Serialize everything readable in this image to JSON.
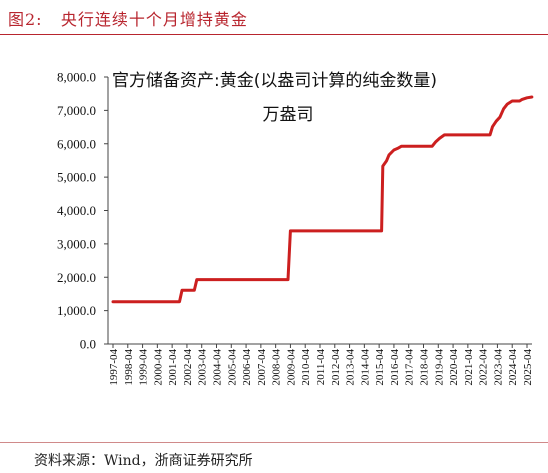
{
  "figure": {
    "label": "图2:",
    "title": "央行连续十个月增持黄金",
    "source": "资料来源：Wind，浙商证券研究所"
  },
  "chart_data": {
    "type": "line",
    "title": "官方储备资产:黄金(以盎司计算的纯金数量)",
    "series": [
      {
        "name": "万盎司",
        "color": "#cc1f1f",
        "points": [
          [
            "1997-04",
            1267
          ],
          [
            "1998-04",
            1267
          ],
          [
            "1999-04",
            1267
          ],
          [
            "2000-04",
            1267
          ],
          [
            "2001-04",
            1267
          ],
          [
            "2001-10",
            1267
          ],
          [
            "2001-12",
            1608
          ],
          [
            "2002-04",
            1608
          ],
          [
            "2002-10",
            1608
          ],
          [
            "2002-12",
            1929
          ],
          [
            "2003-04",
            1929
          ],
          [
            "2004-04",
            1929
          ],
          [
            "2005-04",
            1929
          ],
          [
            "2006-04",
            1929
          ],
          [
            "2007-04",
            1929
          ],
          [
            "2008-04",
            1929
          ],
          [
            "2009-02",
            1929
          ],
          [
            "2009-04",
            3389
          ],
          [
            "2010-04",
            3389
          ],
          [
            "2011-04",
            3389
          ],
          [
            "2012-04",
            3389
          ],
          [
            "2013-04",
            3389
          ],
          [
            "2014-04",
            3389
          ],
          [
            "2015-04",
            3389
          ],
          [
            "2015-06",
            3389
          ],
          [
            "2015-07",
            5331
          ],
          [
            "2015-10",
            5485
          ],
          [
            "2015-12",
            5666
          ],
          [
            "2016-04",
            5814
          ],
          [
            "2016-07",
            5861
          ],
          [
            "2016-10",
            5924
          ],
          [
            "2017-04",
            5924
          ],
          [
            "2018-04",
            5924
          ],
          [
            "2018-11",
            5924
          ],
          [
            "2019-02",
            6062
          ],
          [
            "2019-05",
            6161
          ],
          [
            "2019-09",
            6264
          ],
          [
            "2020-04",
            6264
          ],
          [
            "2021-04",
            6264
          ],
          [
            "2022-04",
            6264
          ],
          [
            "2022-10",
            6264
          ],
          [
            "2022-12",
            6512
          ],
          [
            "2023-03",
            6676
          ],
          [
            "2023-06",
            6795
          ],
          [
            "2023-09",
            7046
          ],
          [
            "2023-12",
            7187
          ],
          [
            "2024-04",
            7280
          ],
          [
            "2024-10",
            7280
          ],
          [
            "2024-12",
            7329
          ],
          [
            "2025-04",
            7377
          ],
          [
            "2025-08",
            7402
          ]
        ]
      }
    ],
    "y_ticks": [
      "0.0",
      "1,000.0",
      "2,000.0",
      "3,000.0",
      "4,000.0",
      "5,000.0",
      "6,000.0",
      "7,000.0",
      "8,000.0"
    ],
    "ylim": [
      0,
      8000
    ],
    "x_ticks": [
      "1997-04",
      "1998-04",
      "1999-04",
      "2000-04",
      "2001-04",
      "2002-04",
      "2003-04",
      "2004-04",
      "2005-04",
      "2006-04",
      "2007-04",
      "2008-04",
      "2009-04",
      "2010-04",
      "2011-04",
      "2012-04",
      "2013-04",
      "2014-04",
      "2015-04",
      "2016-04",
      "2017-04",
      "2018-04",
      "2019-04",
      "2020-04",
      "2021-04",
      "2022-04",
      "2023-04",
      "2024-04",
      "2025-04"
    ],
    "grid": false,
    "legend": "top-center"
  }
}
